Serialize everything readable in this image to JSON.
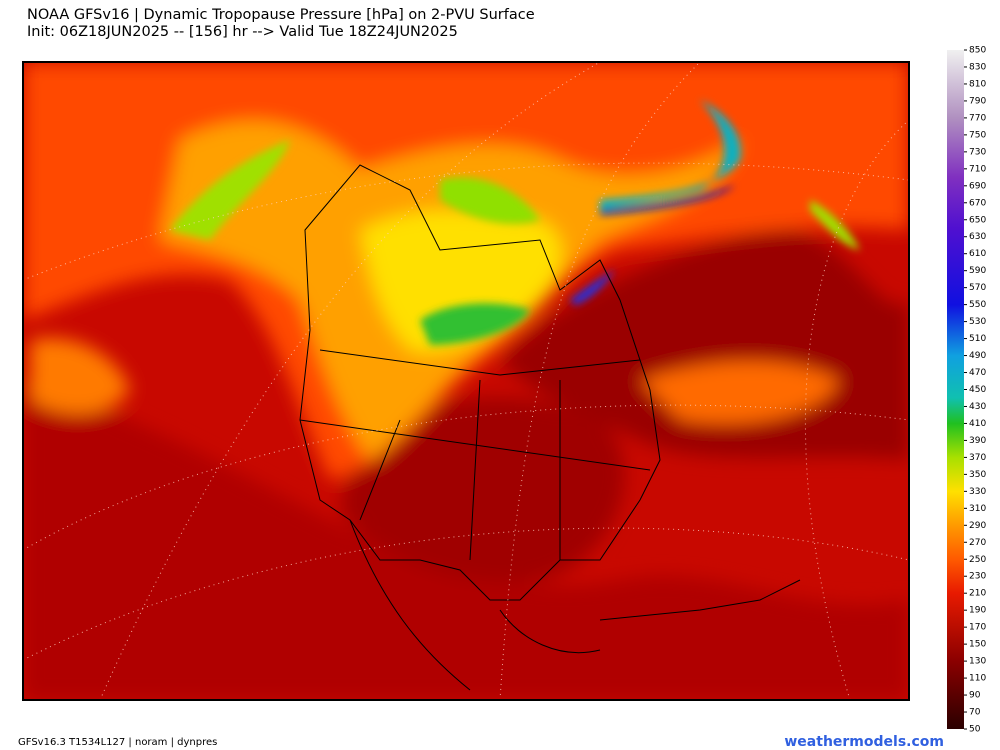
{
  "header": {
    "title": "NOAA GFSv16 |  Dynamic Tropopause Pressure [hPa] on 2-PVU Surface",
    "subtitle": "Init: 06Z18JUN2025 -- [156] hr --> Valid Tue 18Z24JUN2025"
  },
  "colorbar": {
    "ticks": [
      50,
      70,
      90,
      110,
      130,
      150,
      170,
      190,
      210,
      230,
      250,
      270,
      290,
      310,
      330,
      350,
      370,
      390,
      410,
      430,
      450,
      470,
      490,
      510,
      530,
      550,
      570,
      590,
      610,
      630,
      650,
      670,
      690,
      710,
      730,
      750,
      770,
      790,
      810,
      830,
      850
    ],
    "stops": [
      {
        "value": 50,
        "color": "#2a0000"
      },
      {
        "value": 130,
        "color": "#8b0000"
      },
      {
        "value": 210,
        "color": "#e81a00"
      },
      {
        "value": 250,
        "color": "#ff5a00"
      },
      {
        "value": 290,
        "color": "#ff9a00"
      },
      {
        "value": 330,
        "color": "#ffe000"
      },
      {
        "value": 370,
        "color": "#a8e000"
      },
      {
        "value": 410,
        "color": "#20c020"
      },
      {
        "value": 440,
        "color": "#10c0b0"
      },
      {
        "value": 490,
        "color": "#10a0e0"
      },
      {
        "value": 550,
        "color": "#1010e0"
      },
      {
        "value": 640,
        "color": "#5010d0"
      },
      {
        "value": 700,
        "color": "#8030c0"
      },
      {
        "value": 770,
        "color": "#b090c0"
      },
      {
        "value": 850,
        "color": "#f0f0f0"
      }
    ]
  },
  "footer": {
    "left": "GFSv16.3 T1534L127 | noram | dynpres",
    "right": "weathermodels.com"
  }
}
